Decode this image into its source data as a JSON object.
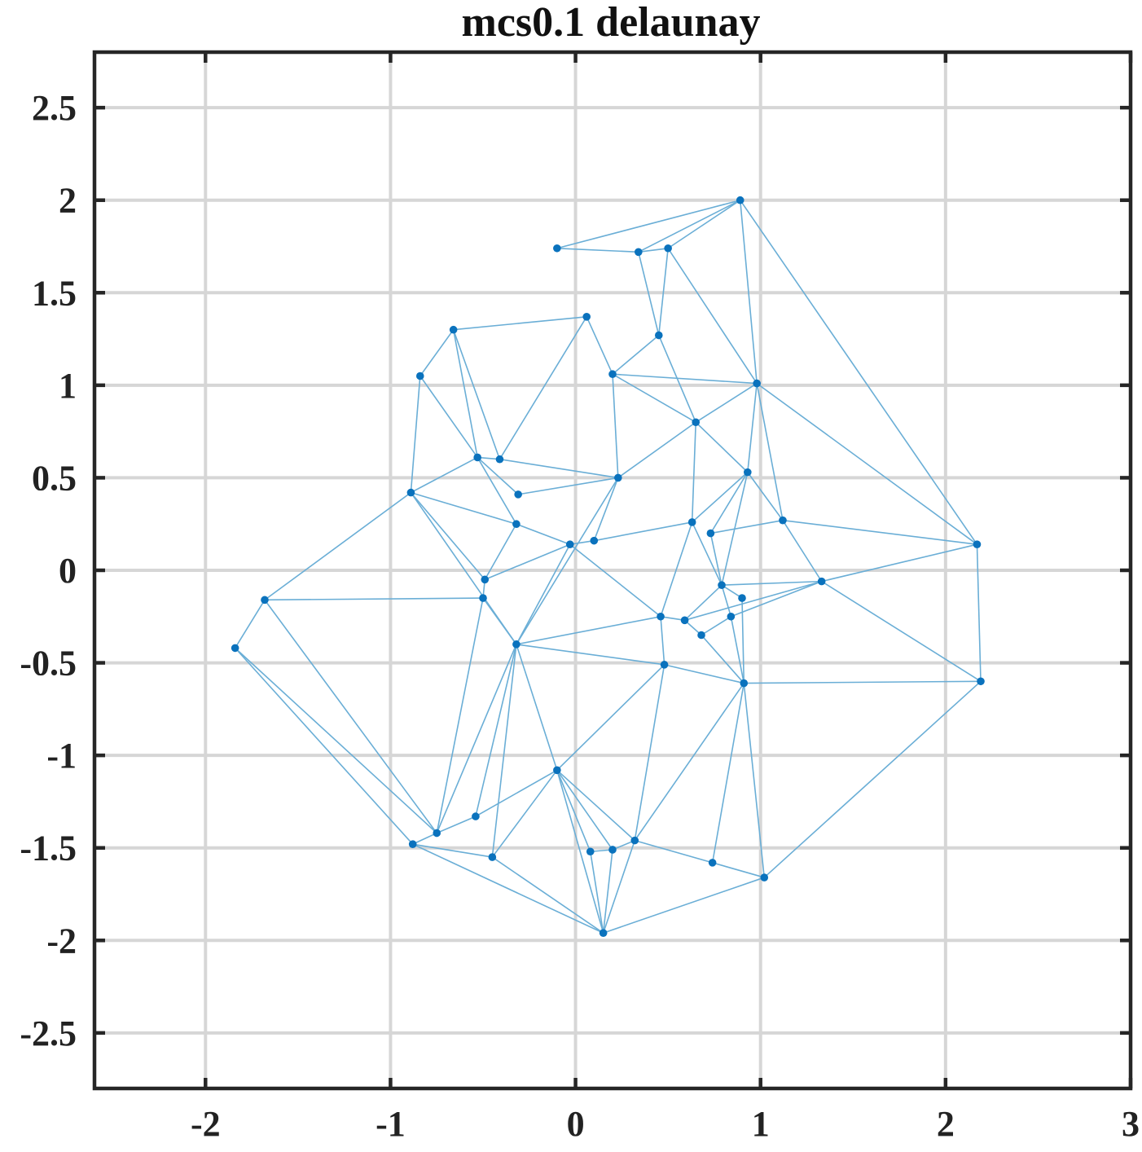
{
  "chart_data": {
    "type": "scatter",
    "title": "mcs0.1 delaunay",
    "xlabel": "",
    "ylabel": "",
    "xlim": [
      -2.6,
      3.0
    ],
    "ylim": [
      -2.8,
      2.8
    ],
    "grid": true,
    "x_ticks": [
      -2,
      -1,
      0,
      1,
      2,
      3
    ],
    "x_tick_labels": [
      "-2",
      "-1",
      "0",
      "1",
      "2",
      "3"
    ],
    "y_ticks": [
      2.5,
      2,
      1.5,
      1,
      0.5,
      0,
      -0.5,
      -1,
      -1.5,
      -2,
      -2.5
    ],
    "y_tick_labels": [
      "2.5",
      "2",
      "1.5",
      "1",
      "0.5",
      "0",
      "-0.5",
      "-1",
      "-1.5",
      "-2",
      "-2.5"
    ],
    "colors": {
      "edge": "#6aaed6",
      "point": "#0a72bd",
      "grid": "#d6d6d6",
      "frame": "#262626"
    },
    "points": [
      [
        0.89,
        2.0
      ],
      [
        -0.1,
        1.74
      ],
      [
        0.34,
        1.72
      ],
      [
        0.5,
        1.74
      ],
      [
        0.45,
        1.27
      ],
      [
        0.06,
        1.37
      ],
      [
        -0.66,
        1.3
      ],
      [
        -0.84,
        1.05
      ],
      [
        0.2,
        1.06
      ],
      [
        0.98,
        1.01
      ],
      [
        0.65,
        0.8
      ],
      [
        -0.53,
        0.61
      ],
      [
        -0.41,
        0.6
      ],
      [
        0.23,
        0.5
      ],
      [
        0.93,
        0.53
      ],
      [
        -0.89,
        0.42
      ],
      [
        -0.31,
        0.41
      ],
      [
        -0.32,
        0.25
      ],
      [
        0.63,
        0.26
      ],
      [
        1.12,
        0.27
      ],
      [
        0.73,
        0.2
      ],
      [
        2.17,
        0.14
      ],
      [
        0.1,
        0.16
      ],
      [
        -0.03,
        0.14
      ],
      [
        -0.49,
        -0.05
      ],
      [
        1.33,
        -0.06
      ],
      [
        0.79,
        -0.08
      ],
      [
        -0.5,
        -0.15
      ],
      [
        -1.68,
        -0.16
      ],
      [
        0.9,
        -0.15
      ],
      [
        0.46,
        -0.25
      ],
      [
        0.59,
        -0.27
      ],
      [
        0.84,
        -0.25
      ],
      [
        0.68,
        -0.35
      ],
      [
        -0.32,
        -0.4
      ],
      [
        -1.84,
        -0.42
      ],
      [
        0.48,
        -0.51
      ],
      [
        0.91,
        -0.61
      ],
      [
        2.19,
        -0.6
      ],
      [
        -0.1,
        -1.08
      ],
      [
        -0.54,
        -1.33
      ],
      [
        -0.75,
        -1.42
      ],
      [
        -0.88,
        -1.48
      ],
      [
        0.32,
        -1.46
      ],
      [
        0.08,
        -1.52
      ],
      [
        0.2,
        -1.51
      ],
      [
        -0.45,
        -1.55
      ],
      [
        0.74,
        -1.58
      ],
      [
        1.02,
        -1.66
      ],
      [
        0.15,
        -1.96
      ]
    ],
    "edges": [
      [
        1,
        0
      ],
      [
        1,
        2
      ],
      [
        2,
        0
      ],
      [
        2,
        3
      ],
      [
        3,
        0
      ],
      [
        0,
        9
      ],
      [
        0,
        21
      ],
      [
        2,
        4
      ],
      [
        3,
        4
      ],
      [
        3,
        9
      ],
      [
        4,
        8
      ],
      [
        4,
        10
      ],
      [
        8,
        10
      ],
      [
        8,
        9
      ],
      [
        10,
        9
      ],
      [
        9,
        14
      ],
      [
        9,
        19
      ],
      [
        9,
        21
      ],
      [
        10,
        14
      ],
      [
        10,
        18
      ],
      [
        10,
        13
      ],
      [
        8,
        5
      ],
      [
        8,
        13
      ],
      [
        5,
        6
      ],
      [
        5,
        12
      ],
      [
        6,
        7
      ],
      [
        6,
        11
      ],
      [
        6,
        12
      ],
      [
        7,
        11
      ],
      [
        7,
        15
      ],
      [
        11,
        15
      ],
      [
        11,
        12
      ],
      [
        11,
        16
      ],
      [
        11,
        17
      ],
      [
        12,
        13
      ],
      [
        16,
        13
      ],
      [
        13,
        22
      ],
      [
        13,
        34
      ],
      [
        15,
        17
      ],
      [
        15,
        24
      ],
      [
        15,
        34
      ],
      [
        15,
        28
      ],
      [
        17,
        23
      ],
      [
        23,
        22
      ],
      [
        23,
        24
      ],
      [
        23,
        30
      ],
      [
        23,
        34
      ],
      [
        22,
        18
      ],
      [
        14,
        18
      ],
      [
        14,
        20
      ],
      [
        14,
        26
      ],
      [
        14,
        19
      ],
      [
        18,
        30
      ],
      [
        18,
        26
      ],
      [
        20,
        19
      ],
      [
        20,
        26
      ],
      [
        19,
        21
      ],
      [
        19,
        25
      ],
      [
        21,
        25
      ],
      [
        21,
        38
      ],
      [
        25,
        26
      ],
      [
        25,
        31
      ],
      [
        25,
        32
      ],
      [
        25,
        38
      ],
      [
        26,
        31
      ],
      [
        26,
        32
      ],
      [
        26,
        29
      ],
      [
        29,
        37
      ],
      [
        32,
        33
      ],
      [
        32,
        37
      ],
      [
        30,
        31
      ],
      [
        30,
        34
      ],
      [
        30,
        36
      ],
      [
        31,
        33
      ],
      [
        33,
        37
      ],
      [
        34,
        36
      ],
      [
        34,
        39
      ],
      [
        34,
        40
      ],
      [
        34,
        41
      ],
      [
        34,
        46
      ],
      [
        36,
        37
      ],
      [
        36,
        39
      ],
      [
        36,
        43
      ],
      [
        37,
        38
      ],
      [
        37,
        43
      ],
      [
        37,
        47
      ],
      [
        37,
        48
      ],
      [
        38,
        48
      ],
      [
        28,
        35
      ],
      [
        28,
        27
      ],
      [
        28,
        41
      ],
      [
        35,
        41
      ],
      [
        35,
        42
      ],
      [
        27,
        24
      ],
      [
        27,
        41
      ],
      [
        27,
        34
      ],
      [
        24,
        17
      ],
      [
        39,
        40
      ],
      [
        39,
        46
      ],
      [
        39,
        43
      ],
      [
        39,
        44
      ],
      [
        39,
        45
      ],
      [
        39,
        49
      ],
      [
        40,
        41
      ],
      [
        41,
        42
      ],
      [
        42,
        46
      ],
      [
        42,
        49
      ],
      [
        46,
        49
      ],
      [
        44,
        45
      ],
      [
        44,
        49
      ],
      [
        45,
        43
      ],
      [
        45,
        49
      ],
      [
        43,
        49
      ],
      [
        43,
        47
      ],
      [
        47,
        48
      ],
      [
        48,
        49
      ]
    ]
  }
}
